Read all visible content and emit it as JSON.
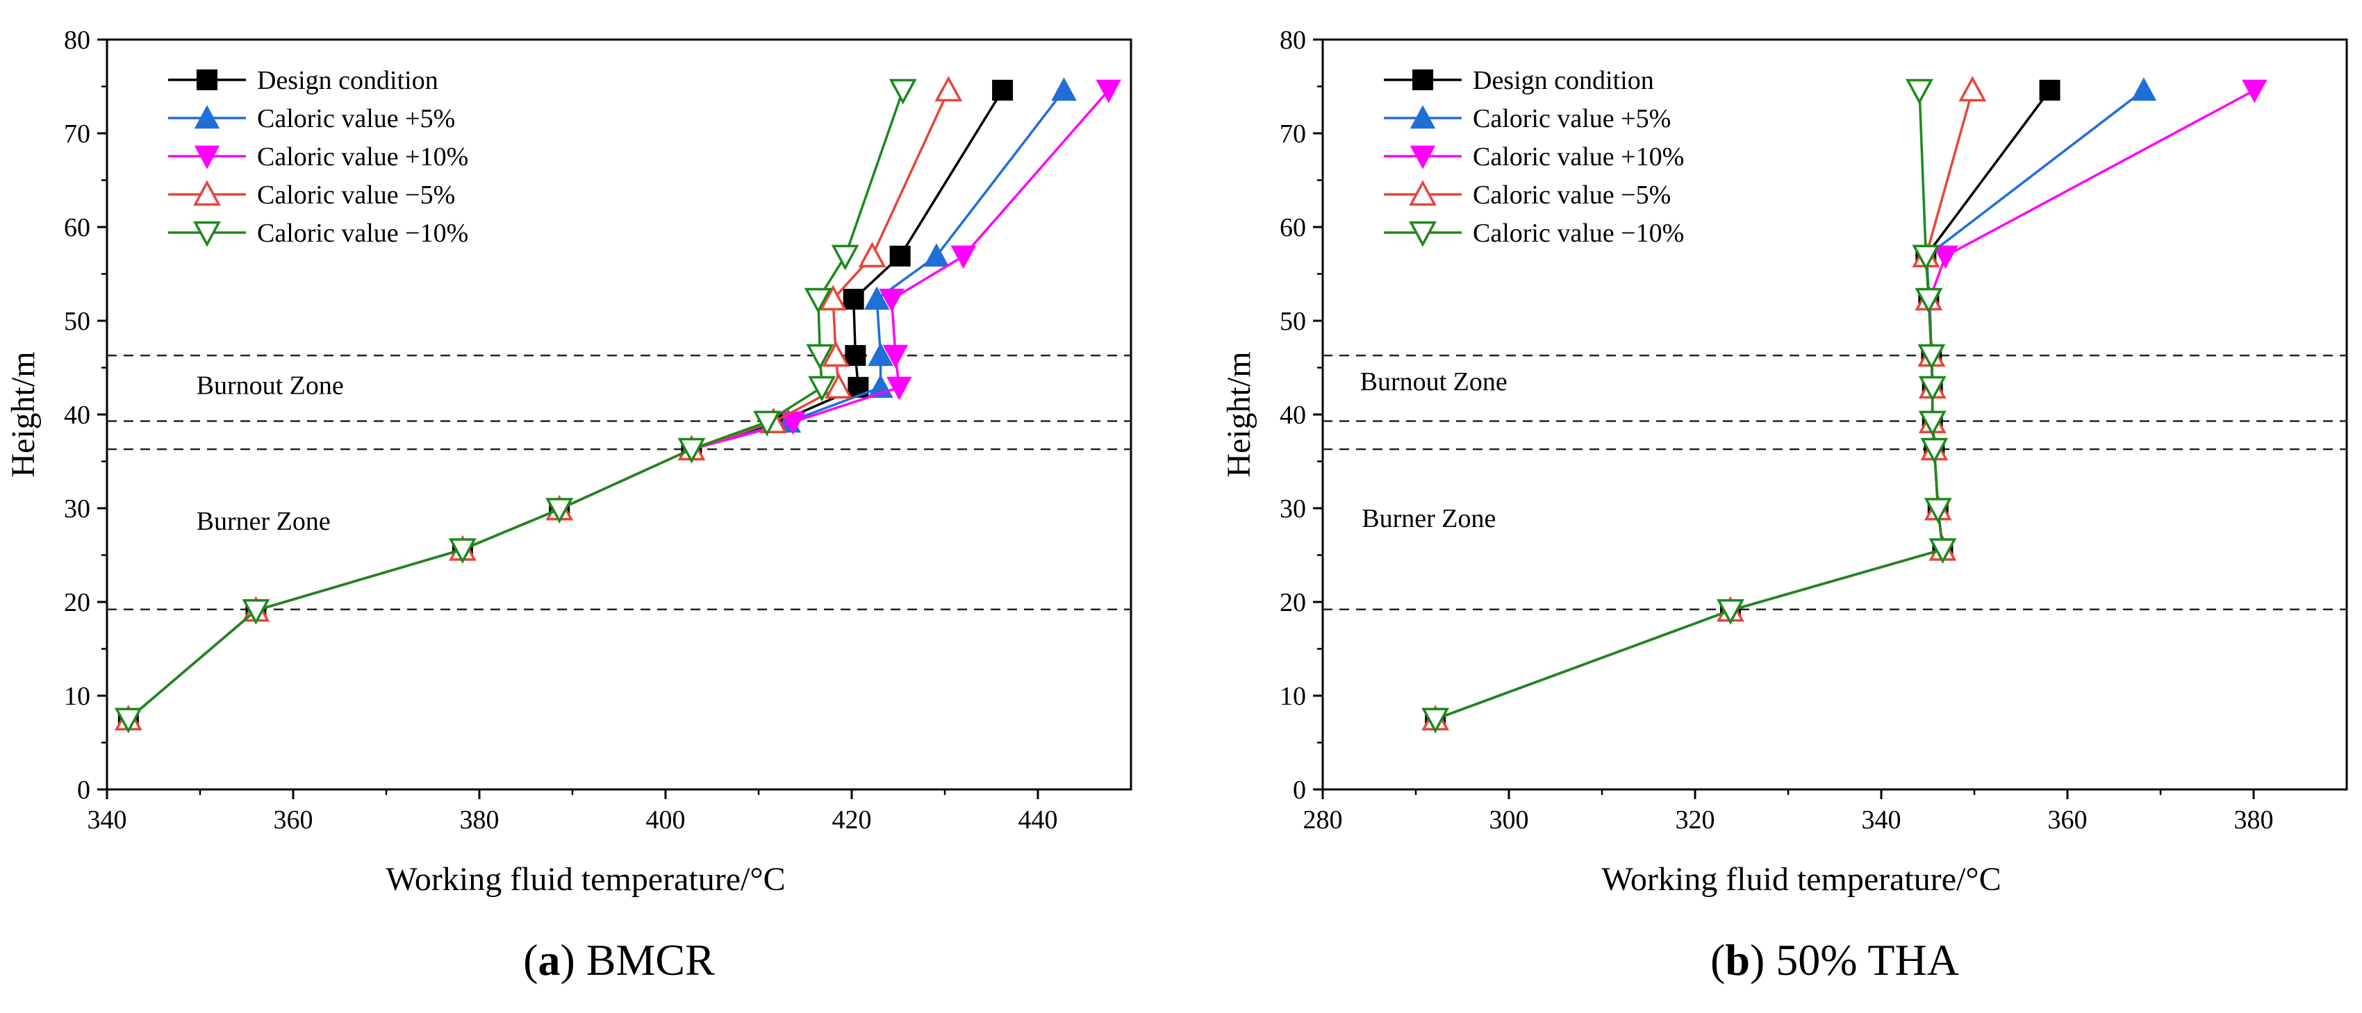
{
  "figure": {
    "marker_colors": {
      "design": "#000000",
      "plus5": "#1f6fd8",
      "plus10": "#ff00ff",
      "minus5": "#e8443a",
      "minus10": "#1a8a1a"
    }
  },
  "chart_data": [
    {
      "type": "line",
      "caption_letter": "a",
      "caption_text": "BMCR",
      "xlabel": "Working fluid temperature/°C",
      "ylabel": "Height/m",
      "xlim": [
        340,
        450
      ],
      "ylim": [
        0,
        80
      ],
      "xticks": [
        340,
        360,
        380,
        400,
        420,
        440
      ],
      "yticks": [
        0,
        10,
        20,
        30,
        40,
        50,
        60,
        70,
        80
      ],
      "legend_position": "top-left",
      "grid": false,
      "reference_lines_y": [
        19.2,
        36.3,
        39.3,
        46.3
      ],
      "zones": [
        {
          "label": "Burnout Zone",
          "x": 349.6,
          "y": 42.2
        },
        {
          "label": "Burner Zone",
          "x": 349.6,
          "y": 27.7
        }
      ],
      "series": [
        {
          "name": "Design condition",
          "marker": "square",
          "color": "#000000",
          "x": [
            342.3,
            356.0,
            378.2,
            388.6,
            402.8,
            412.2,
            420.7,
            420.4,
            420.2,
            425.2,
            436.2
          ],
          "y": [
            7.5,
            19.1,
            25.6,
            29.9,
            36.3,
            39.2,
            42.9,
            46.3,
            52.3,
            56.9,
            74.6
          ]
        },
        {
          "name": "Caloric value +5%",
          "marker": "triangle-up",
          "color": "#1f6fd8",
          "x": [
            342.3,
            356.0,
            378.2,
            388.6,
            402.8,
            413.2,
            423.1,
            423.1,
            422.7,
            429.1,
            442.8
          ],
          "y": [
            7.5,
            19.1,
            25.6,
            29.9,
            36.3,
            39.2,
            42.9,
            46.3,
            52.3,
            56.9,
            74.6
          ]
        },
        {
          "name": "Caloric value +10%",
          "marker": "triangle-down",
          "color": "#ff00ff",
          "x": [
            342.3,
            356.0,
            378.2,
            388.6,
            402.8,
            413.7,
            425.1,
            424.7,
            424.3,
            432.0,
            447.6
          ],
          "y": [
            7.5,
            19.1,
            25.6,
            29.9,
            36.3,
            39.2,
            42.9,
            46.3,
            52.3,
            56.9,
            74.6
          ]
        },
        {
          "name": "Caloric value −5%",
          "marker": "triangle-up-open",
          "color": "#e8443a",
          "x": [
            342.3,
            356.0,
            378.2,
            388.6,
            402.8,
            411.6,
            418.6,
            418.3,
            418.0,
            422.2,
            430.4
          ],
          "y": [
            7.5,
            19.1,
            25.6,
            29.9,
            36.3,
            39.2,
            42.9,
            46.3,
            52.3,
            56.9,
            74.6
          ]
        },
        {
          "name": "Caloric value −10%",
          "marker": "triangle-down-open",
          "color": "#1a8a1a",
          "x": [
            342.3,
            356.0,
            378.2,
            388.6,
            402.8,
            410.9,
            416.8,
            416.6,
            416.4,
            419.3,
            425.5
          ],
          "y": [
            7.5,
            19.1,
            25.6,
            29.9,
            36.3,
            39.2,
            42.9,
            46.3,
            52.3,
            56.9,
            74.6
          ]
        }
      ]
    },
    {
      "type": "line",
      "caption_letter": "b",
      "caption_text": "50% THA",
      "xlabel": "Working fluid temperature/°C",
      "ylabel": "Height/m",
      "xlim": [
        280,
        390
      ],
      "ylim": [
        0,
        80
      ],
      "xticks": [
        280,
        300,
        320,
        340,
        360,
        380
      ],
      "yticks": [
        0,
        10,
        20,
        30,
        40,
        50,
        60,
        70,
        80
      ],
      "legend_position": "top-left",
      "grid": false,
      "reference_lines_y": [
        19.2,
        36.3,
        39.3,
        46.3
      ],
      "zones": [
        {
          "label": "Burnout Zone",
          "x": 284.0,
          "y": 42.6
        },
        {
          "label": "Burner Zone",
          "x": 284.2,
          "y": 28.0
        }
      ],
      "series": [
        {
          "name": "Design condition",
          "marker": "square",
          "color": "#000000",
          "x": [
            292.1,
            323.8,
            346.6,
            346.1,
            345.7,
            345.5,
            345.5,
            345.4,
            345.1,
            344.8,
            358.1
          ],
          "y": [
            7.5,
            19.1,
            25.6,
            29.9,
            36.3,
            39.2,
            42.9,
            46.3,
            52.3,
            56.9,
            74.6
          ]
        },
        {
          "name": "Caloric value +5%",
          "marker": "triangle-up",
          "color": "#1f6fd8",
          "x": [
            292.1,
            323.8,
            346.6,
            346.1,
            345.7,
            345.5,
            345.5,
            345.4,
            345.1,
            344.9,
            368.2
          ],
          "y": [
            7.5,
            19.1,
            25.6,
            29.9,
            36.3,
            39.2,
            42.9,
            46.3,
            52.3,
            56.9,
            74.6
          ]
        },
        {
          "name": "Caloric value +10%",
          "marker": "triangle-down",
          "color": "#ff00ff",
          "x": [
            292.1,
            323.8,
            346.6,
            346.1,
            345.7,
            345.5,
            345.5,
            345.4,
            345.2,
            346.9,
            380.1
          ],
          "y": [
            7.5,
            19.1,
            25.6,
            29.9,
            36.3,
            39.2,
            42.9,
            46.3,
            52.3,
            56.9,
            74.6
          ]
        },
        {
          "name": "Caloric value −5%",
          "marker": "triangle-up-open",
          "color": "#e8443a",
          "x": [
            292.1,
            323.8,
            346.6,
            346.1,
            345.7,
            345.5,
            345.5,
            345.4,
            345.1,
            344.8,
            349.8
          ],
          "y": [
            7.5,
            19.1,
            25.6,
            29.9,
            36.3,
            39.2,
            42.9,
            46.3,
            52.3,
            56.9,
            74.6
          ]
        },
        {
          "name": "Caloric value −10%",
          "marker": "triangle-down-open",
          "color": "#1a8a1a",
          "x": [
            292.1,
            323.8,
            346.6,
            346.1,
            345.7,
            345.5,
            345.5,
            345.4,
            345.1,
            344.8,
            344.1
          ],
          "y": [
            7.5,
            19.1,
            25.6,
            29.9,
            36.3,
            39.2,
            42.9,
            46.3,
            52.3,
            56.9,
            74.6
          ]
        }
      ]
    }
  ]
}
